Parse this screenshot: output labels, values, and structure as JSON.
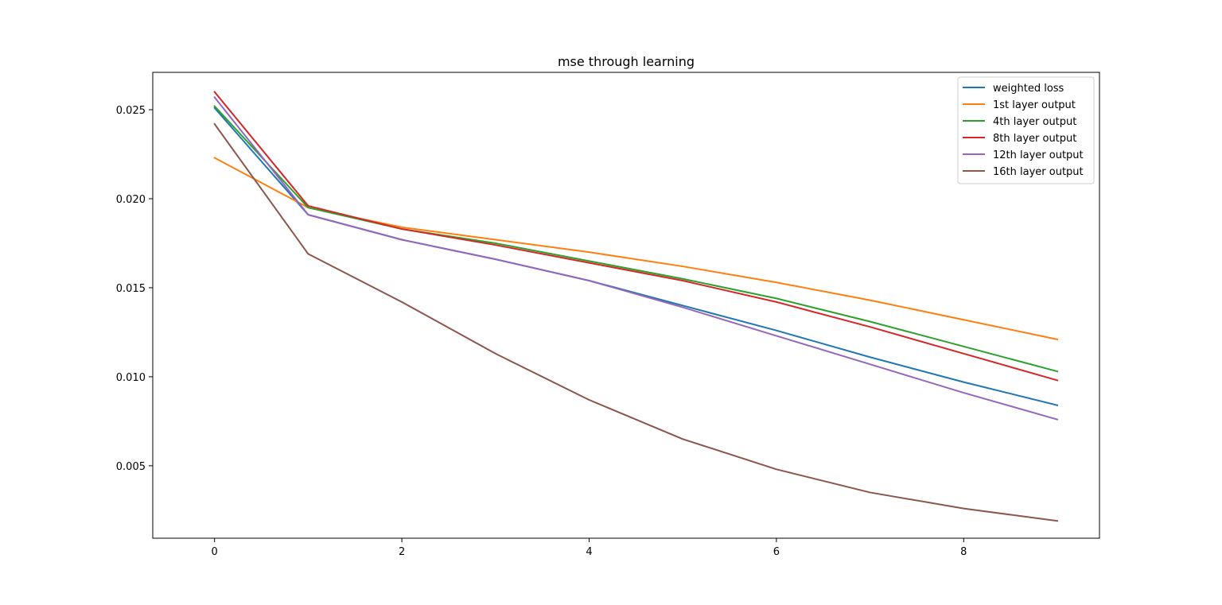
{
  "chart_data": {
    "type": "line",
    "title": "mse through learning",
    "xlabel": "",
    "ylabel": "",
    "x": [
      0,
      1,
      2,
      3,
      4,
      5,
      6,
      7,
      8,
      9
    ],
    "xlim": [
      -0.66,
      9.45
    ],
    "ylim": [
      0.00093,
      0.0271
    ],
    "xticks": [
      0,
      2,
      4,
      6,
      8
    ],
    "xtick_labels": [
      "0",
      "2",
      "4",
      "6",
      "8"
    ],
    "yticks": [
      0.005,
      0.01,
      0.015,
      0.02,
      0.025
    ],
    "ytick_labels": [
      "0.005",
      "0.010",
      "0.015",
      "0.020",
      "0.025"
    ],
    "grid": false,
    "legend_position": "top-right",
    "series": [
      {
        "name": "weighted loss",
        "color": "#1f77b4",
        "values": [
          0.0251,
          0.0191,
          0.0177,
          0.0166,
          0.0154,
          0.014,
          0.0126,
          0.0111,
          0.0097,
          0.0084
        ]
      },
      {
        "name": "1st layer output",
        "color": "#ff7f0e",
        "values": [
          0.0223,
          0.0195,
          0.0184,
          0.0177,
          0.017,
          0.0162,
          0.0153,
          0.0143,
          0.0132,
          0.0121
        ]
      },
      {
        "name": "4th layer output",
        "color": "#2ca02c",
        "values": [
          0.0252,
          0.0195,
          0.0183,
          0.0175,
          0.0165,
          0.0155,
          0.0144,
          0.0131,
          0.0117,
          0.0103
        ]
      },
      {
        "name": "8th layer output",
        "color": "#d62728",
        "values": [
          0.026,
          0.0196,
          0.0183,
          0.0174,
          0.0164,
          0.0154,
          0.0142,
          0.0128,
          0.0113,
          0.0098
        ]
      },
      {
        "name": "12th layer output",
        "color": "#9467bd",
        "values": [
          0.0257,
          0.0191,
          0.0177,
          0.0166,
          0.0154,
          0.0139,
          0.0123,
          0.0107,
          0.0091,
          0.0076
        ]
      },
      {
        "name": "16th layer output",
        "color": "#8c564b",
        "values": [
          0.0242,
          0.0169,
          0.0142,
          0.0113,
          0.0087,
          0.0065,
          0.0048,
          0.0035,
          0.0026,
          0.0019
        ]
      }
    ]
  }
}
